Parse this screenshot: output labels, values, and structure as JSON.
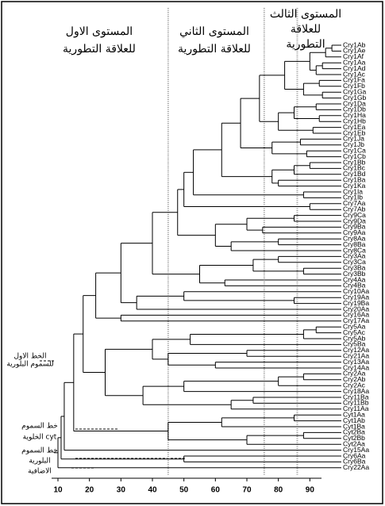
{
  "headings": [
    [
      "المستوى الاول",
      "للعلاقة التطورية"
    ],
    [
      "المستوى الثاني",
      "للعلاقة التطورية"
    ],
    [
      "المستوى الثالث",
      "للعلاقة",
      "التطورية"
    ]
  ],
  "side_labels": [
    [
      "الخط الاول",
      "للسموم البلورية"
    ],
    [
      "خط السموم",
      "الخلوية cyt"
    ],
    [
      "خط السموم",
      "البلورية",
      "الاضافية"
    ]
  ],
  "dendrogram": {
    "leaves": [
      "Cry1Ab",
      "Cry1Ae",
      "Cry1Af",
      "Cry1Aa",
      "Cry1Ad",
      "Cry1Ac",
      "Cry1Fa",
      "Cry1Fb",
      "Cry1Ga",
      "Cry1Gb",
      "Cry1Da",
      "Cry1Db",
      "Cry1Ha",
      "Cry1Hb",
      "Cry1Ea",
      "Cry1Eb",
      "Cry1Ja",
      "Cry1Jb",
      "Cry1Ca",
      "Cry1Cb",
      "Cry1Bb",
      "Cry1Bc",
      "Cry1Bd",
      "Cry1Ba",
      "Cry1Ka",
      "Cry1Ia",
      "Cry1Ib",
      "Cry7Aa",
      "Cry7Ab",
      "Cry9Ca",
      "Cry9Da",
      "Cry9Ba",
      "Cry9Aa",
      "Cry8Aa",
      "Cry8Ba",
      "Cry8Ca",
      "Cry3Aa",
      "Cry3Ca",
      "Cry3Ba",
      "Cry3Bb",
      "Cry4Aa",
      "Cry4Ba",
      "Cry10Aa",
      "Cry19Aa",
      "Cry19Ba",
      "Cry20Aa",
      "Cry16Aa",
      "Cry17Aa",
      "Cry5Aa",
      "Cry5Ac",
      "Cry5Ab",
      "Cry5Ba",
      "Cry12Aa",
      "Cry21Aa",
      "Cry13Aa",
      "Cry14Aa",
      "Cry2Aa",
      "Cry2Ab",
      "Cry2Ac",
      "Cry18Aa",
      "Cry11Ba",
      "Cry11Bb",
      "Cry11Aa",
      "Cyt1Aa",
      "Cyt1Ab",
      "Cyt1Ba",
      "Cyt2Ba",
      "Cyt2Bb",
      "Cyt2Aa",
      "Cry15Aa",
      "Cry6Aa",
      "Cry6Ba",
      "Cry22Aa"
    ],
    "tree": [
      10,
      [
        11,
        [
          12,
          [
            15,
            [
              18,
              [
                22,
                [
                  30,
                  [
                    40,
                    [
                      48,
                      [
                        50,
                        [
                          53,
                          [
                            62,
                            [
                              68,
                              [
                                74,
                                [
                                  82,
                                  [
                                    90,
                                    [
                                      95,
                                      [
                                        97,
                                        0,
                                        1
                                      ],
                                      2
                                    ],
                                    [
                                      92,
                                      [
                                        94,
                                        3,
                                        4
                                      ],
                                      5
                                    ]
                                  ],
                                  [
                                    88,
                                    [
                                      93,
                                      6,
                                      7
                                    ],
                                    [
                                      94,
                                      8,
                                      9
                                    ]
                                  ]
                                ],
                                [
                                  80,
                                  [
                                    85,
                                    [
                                      92,
                                      10,
                                      11
                                    ],
                                    [
                                      93,
                                      12,
                                      13
                                    ]
                                  ],
                                  [
                                    91,
                                    14,
                                    15
                                  ]
                                ]
                              ],
                              [
                                78,
                                [
                                  87,
                                  16,
                                  17
                                ],
                                [
                                  89,
                                  18,
                                  19
                                ]
                              ]
                            ],
                            [
                              78,
                              [
                                85,
                                [
                                  90,
                                  20,
                                  21
                                ],
                                22
                              ],
                              [
                                80,
                                23,
                                24
                              ]
                            ]
                          ],
                          [
                            88,
                            25,
                            26
                          ]
                        ],
                        [
                          90,
                          27,
                          28
                        ]
                      ],
                      [
                        60,
                        [
                          70,
                          [
                            85,
                            29,
                            30
                          ],
                          [
                            75,
                            31,
                            32
                          ]
                        ],
                        [
                          65,
                          [
                            80,
                            33,
                            34
                          ],
                          35
                        ]
                      ]
                    ],
                    [
                      55,
                      [
                        72,
                        [
                          80,
                          36,
                          37
                        ],
                        [
                          88,
                          38,
                          39
                        ]
                      ],
                      [
                        63,
                        40,
                        41
                      ]
                    ]
                  ],
                  [
                    35,
                    [
                      50,
                      42,
                      [
                        85,
                        43,
                        44
                      ]
                    ],
                    45
                  ]
                ],
                [
                  30,
                  46,
                  47
                ]
              ],
              [
                25,
                [
                  40,
                  [
                    52,
                    [
                      88,
                      [
                        92,
                        48,
                        49
                      ],
                      50
                    ],
                    51
                  ],
                  [
                    45,
                    [
                      70,
                      52,
                      53
                    ],
                    [
                      60,
                      54,
                      55
                    ]
                  ]
                ],
                [
                  37,
                  [
                    50,
                    [
                      80,
                      [
                        88,
                        56,
                        57
                      ],
                      58
                    ],
                    59
                  ],
                  [
                    65,
                    [
                      72,
                      60,
                      61
                    ],
                    62
                  ]
                ]
              ]
            ],
            [
              45,
              [
                62,
                [
                  85,
                  63,
                  64
                ],
                65
              ],
              [
                70,
                [
                  88,
                  66,
                  67
                ],
                68
              ]
            ]
          ],
          69
        ],
        [
          50,
          70,
          71
        ]
      ],
      72
    ],
    "xlim": [
      10,
      100
    ],
    "xticks": [
      10,
      20,
      30,
      40,
      50,
      60,
      70,
      80,
      90
    ],
    "level_lines": [
      45,
      75.5,
      86
    ]
  }
}
